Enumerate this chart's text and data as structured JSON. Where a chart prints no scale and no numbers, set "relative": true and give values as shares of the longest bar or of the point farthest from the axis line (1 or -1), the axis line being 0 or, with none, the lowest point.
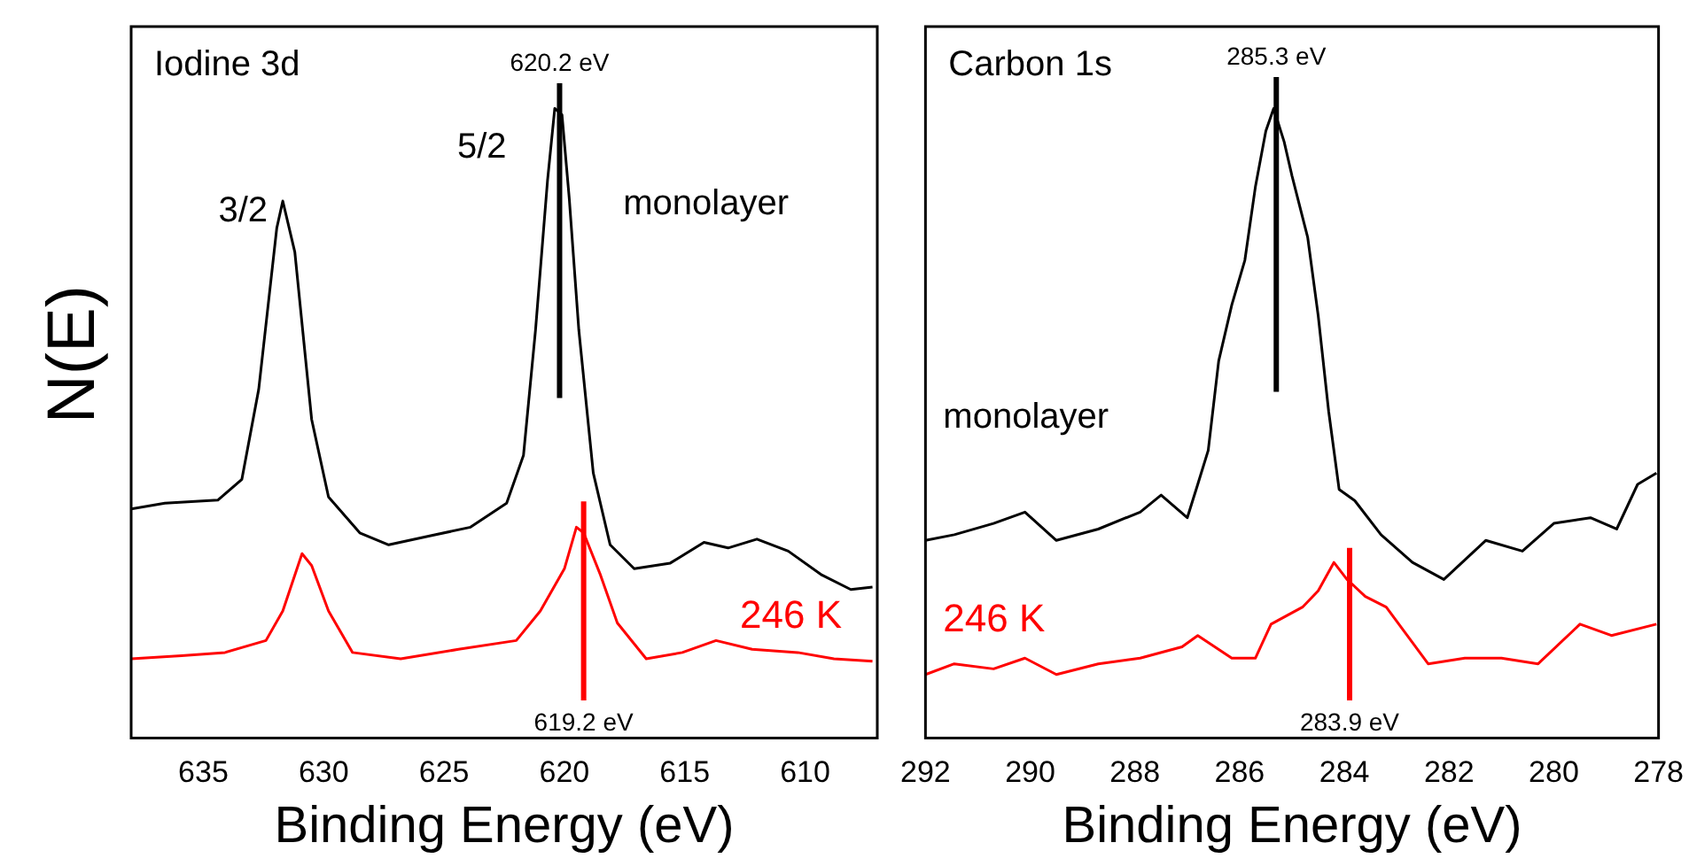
{
  "chart_data": [
    {
      "type": "line",
      "title": "Iodine 3d",
      "xlabel": "Binding Energy (eV)",
      "ylabel": "N(E)",
      "relative": true,
      "xlim": [
        638,
        607
      ],
      "xticks": [
        635,
        630,
        625,
        620,
        615,
        610
      ],
      "grid": false,
      "legend": "right",
      "marker": "none",
      "line_style": "solid",
      "annotations": [
        "3/2",
        "5/2"
      ],
      "ref_lines": [
        {
          "axis": "x",
          "value": 620.2,
          "label": "620.2 eV",
          "color": "#000000"
        },
        {
          "axis": "x",
          "value": 619.2,
          "label": "619.2 eV",
          "color": "#ff0000"
        }
      ],
      "series": [
        {
          "name": "monolayer",
          "color": "#000000",
          "x": [
            638.0,
            636.6,
            634.4,
            633.4,
            632.7,
            631.95,
            631.7,
            631.2,
            630.5,
            629.8,
            628.5,
            627.3,
            625.6,
            623.9,
            622.4,
            621.7,
            621.2,
            620.7,
            620.4,
            620.1,
            619.8,
            619.4,
            618.8,
            618.1,
            617.1,
            615.6,
            614.2,
            613.2,
            612.0,
            610.7,
            609.3,
            608.1,
            607.2
          ],
          "values": [
            0.364,
            0.373,
            0.378,
            0.411,
            0.554,
            0.81,
            0.853,
            0.772,
            0.506,
            0.383,
            0.326,
            0.307,
            0.321,
            0.335,
            0.373,
            0.449,
            0.648,
            0.886,
            1.0,
            0.99,
            0.858,
            0.648,
            0.421,
            0.307,
            0.269,
            0.278,
            0.311,
            0.302,
            0.316,
            0.297,
            0.259,
            0.236,
            0.24
          ]
        },
        {
          "name": "246 K",
          "color": "#ff0000",
          "x": [
            638.0,
            635.9,
            634.1,
            632.4,
            631.7,
            630.9,
            630.5,
            629.8,
            628.8,
            626.8,
            624.4,
            622.0,
            621.0,
            620.0,
            619.5,
            619.2,
            618.5,
            617.8,
            616.6,
            615.1,
            613.7,
            612.2,
            610.3,
            608.8,
            607.2
          ],
          "values": [
            0.126,
            0.131,
            0.136,
            0.155,
            0.202,
            0.293,
            0.274,
            0.202,
            0.136,
            0.126,
            0.141,
            0.155,
            0.202,
            0.269,
            0.335,
            0.326,
            0.259,
            0.183,
            0.126,
            0.136,
            0.155,
            0.141,
            0.136,
            0.126,
            0.122
          ]
        }
      ]
    },
    {
      "type": "line",
      "title": "Carbon 1s",
      "xlabel": "Binding Energy (eV)",
      "relative": true,
      "xlim": [
        292,
        278
      ],
      "xticks": [
        292,
        290,
        288,
        286,
        284,
        282,
        280,
        278
      ],
      "grid": false,
      "legend": "left",
      "marker": "none",
      "line_style": "solid",
      "ref_lines": [
        {
          "axis": "x",
          "value": 285.3,
          "label": "285.3 eV",
          "color": "#000000"
        },
        {
          "axis": "x",
          "value": 283.9,
          "label": "283.9 eV",
          "color": "#ff0000"
        }
      ],
      "series": [
        {
          "name": "monolayer",
          "color": "#000000",
          "x": [
            292.0,
            291.45,
            290.7,
            290.1,
            289.5,
            288.7,
            287.9,
            287.5,
            287.0,
            286.8,
            286.6,
            286.4,
            286.15,
            285.9,
            285.7,
            285.5,
            285.35,
            285.15,
            285.0,
            284.7,
            284.5,
            284.3,
            284.1,
            283.8,
            283.3,
            282.7,
            282.1,
            281.3,
            280.6,
            280.0,
            279.3,
            278.8,
            278.4,
            278.04
          ],
          "values": [
            0.314,
            0.323,
            0.341,
            0.359,
            0.314,
            0.332,
            0.359,
            0.386,
            0.35,
            0.403,
            0.457,
            0.599,
            0.688,
            0.759,
            0.875,
            0.964,
            1.0,
            0.947,
            0.893,
            0.795,
            0.671,
            0.519,
            0.395,
            0.377,
            0.323,
            0.279,
            0.252,
            0.314,
            0.297,
            0.341,
            0.35,
            0.332,
            0.403,
            0.421
          ]
        },
        {
          "name": "246 K",
          "color": "#ff0000",
          "x": [
            292.0,
            291.45,
            290.7,
            290.1,
            289.5,
            288.7,
            287.9,
            287.1,
            286.8,
            286.15,
            285.7,
            285.4,
            284.8,
            284.5,
            284.2,
            283.95,
            283.6,
            283.2,
            282.8,
            282.4,
            281.7,
            281.0,
            280.3,
            279.5,
            278.9,
            278.04
          ],
          "values": [
            0.101,
            0.118,
            0.11,
            0.127,
            0.101,
            0.118,
            0.127,
            0.145,
            0.163,
            0.127,
            0.127,
            0.181,
            0.208,
            0.234,
            0.279,
            0.252,
            0.225,
            0.208,
            0.163,
            0.118,
            0.127,
            0.127,
            0.118,
            0.181,
            0.163,
            0.181
          ]
        }
      ]
    }
  ]
}
